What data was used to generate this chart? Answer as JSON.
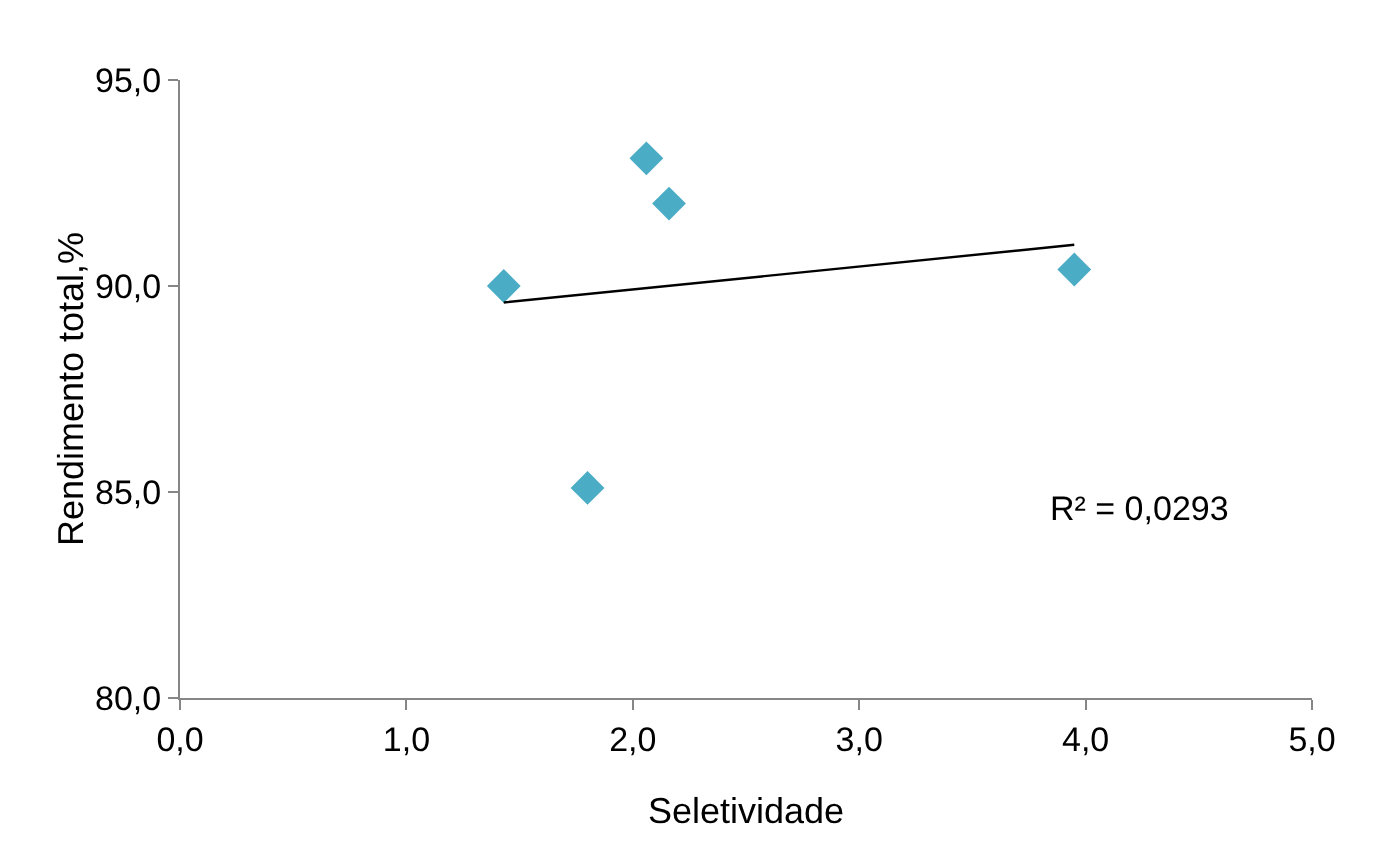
{
  "chart_data": {
    "type": "scatter",
    "xlabel": "Seletividade",
    "ylabel": "Rendimento total,%",
    "x": [
      1.43,
      2.06,
      2.16,
      1.8,
      3.95
    ],
    "series": [
      {
        "color": "#4bacc6",
        "values": [
          90.0,
          93.1,
          92.0,
          85.1,
          90.4
        ]
      },
      {
        "type": "line",
        "marker": "none",
        "color": "#000000",
        "x": [
          1.43,
          3.95
        ],
        "values": [
          89.6,
          91.0
        ]
      }
    ],
    "marker": "diamond",
    "grid": false,
    "xlim": [
      0,
      5
    ],
    "xticks": [
      {
        "value": 0,
        "label": "0,0"
      },
      {
        "value": 1,
        "label": "1,0"
      },
      {
        "value": 2,
        "label": "2,0"
      },
      {
        "value": 3,
        "label": "3,0"
      },
      {
        "value": 4,
        "label": "4,0"
      },
      {
        "value": 5,
        "label": "5,0"
      }
    ],
    "ylim": [
      80,
      95
    ],
    "yticks": [
      {
        "value": 80,
        "label": "80,0"
      },
      {
        "value": 85,
        "label": "85,0"
      },
      {
        "value": 90,
        "label": "90,0"
      },
      {
        "value": 95,
        "label": "95,0"
      }
    ],
    "annotations": [
      "R² = 0,0293"
    ]
  }
}
